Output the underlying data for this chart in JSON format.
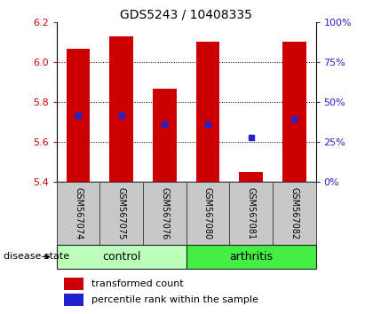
{
  "title": "GDS5243 / 10408335",
  "samples": [
    "GSM567074",
    "GSM567075",
    "GSM567076",
    "GSM567080",
    "GSM567081",
    "GSM567082"
  ],
  "bar_bottom": 5.4,
  "bar_top": [
    6.065,
    6.13,
    5.865,
    6.1,
    5.45,
    6.1
  ],
  "blue_y": [
    5.735,
    5.735,
    5.69,
    5.69,
    5.625,
    5.715
  ],
  "ylim": [
    5.4,
    6.2
  ],
  "yticks_left": [
    5.4,
    5.6,
    5.8,
    6.0,
    6.2
  ],
  "yticks_right_pct": [
    0,
    25,
    50,
    75,
    100
  ],
  "bar_color": "#cc0000",
  "blue_color": "#2222cc",
  "sample_box_color": "#c8c8c8",
  "control_color": "#bbffbb",
  "arthritis_color": "#44ee44",
  "left_tick_color": "#cc0000",
  "right_tick_color": "#2222cc",
  "bar_width": 0.55,
  "legend_red_label": "transformed count",
  "legend_blue_label": "percentile rank within the sample",
  "disease_state_label": "disease state",
  "groups_info": [
    {
      "name": "control",
      "start": 0,
      "end": 2,
      "color": "#bbffbb"
    },
    {
      "name": "arthritis",
      "start": 3,
      "end": 5,
      "color": "#44ee44"
    }
  ]
}
